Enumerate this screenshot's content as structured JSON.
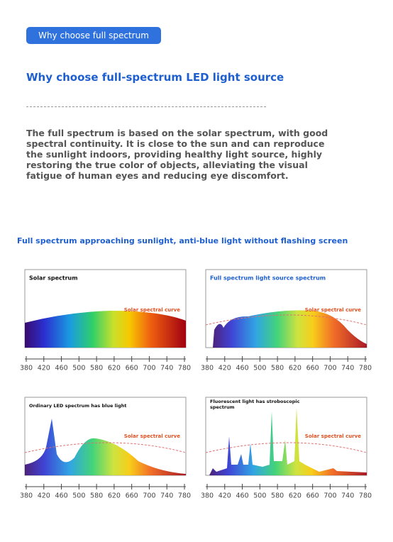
{
  "header": {
    "button": "Why choose full spectrum",
    "title": "Why choose full-spectrum LED light source",
    "body": "The full spectrum is based on the solar spectrum, with good spectral continuity. It is close to the sun and can reproduce the sunlight indoors, providing healthy light source, highly restoring the true color of objects, alleviating the visual fatigue of human eyes and reducing eye discomfort."
  },
  "section": {
    "title": "Full spectrum approaching sunlight, anti-blue light without flashing screen",
    "axis_ticks": [
      380,
      420,
      460,
      500,
      580,
      620,
      660,
      700,
      740,
      780
    ],
    "panels": [
      {
        "title": "Solar spectrum",
        "curve_label": "Solar spectral curve"
      },
      {
        "title": "Full spectrum light source spectrum",
        "curve_label": "Solar spectral curve"
      },
      {
        "title": "Ordinary LED spectrum has blue light",
        "curve_label": "Solar spectral curve"
      },
      {
        "title": "Fluorescent light has stroboscopic spectrum",
        "curve_label": "Solar spectral curve"
      }
    ]
  }
}
